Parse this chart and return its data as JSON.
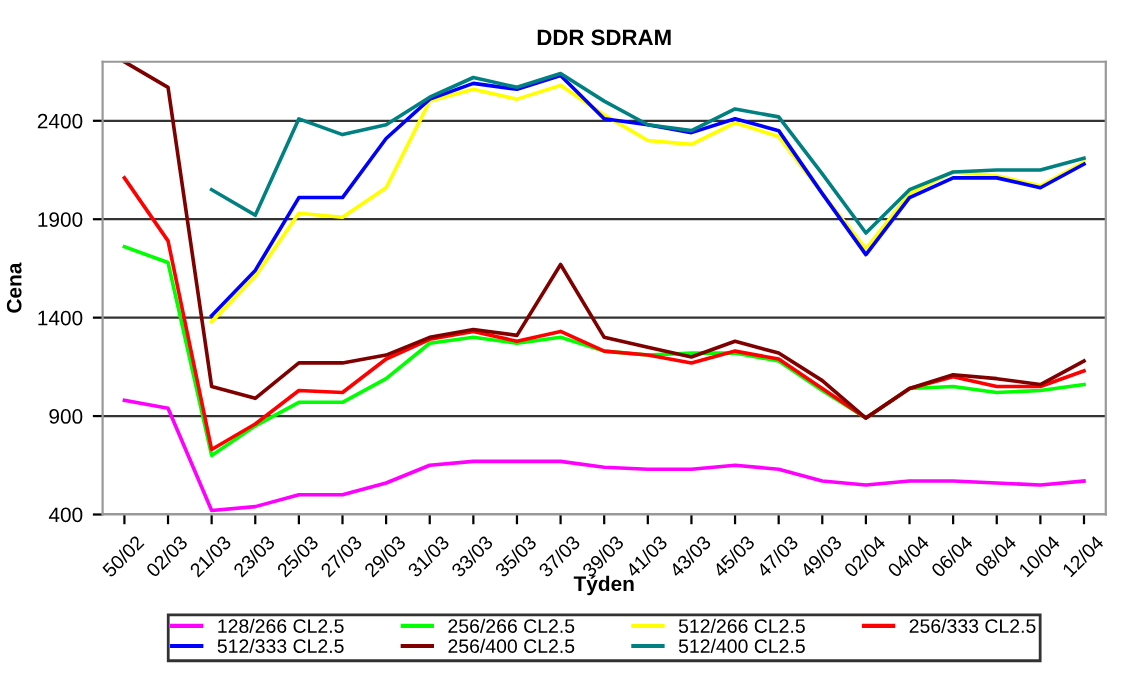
{
  "chart_data": {
    "type": "line",
    "title": "DDR SDRAM",
    "xlabel": "Týden",
    "ylabel": "Cena",
    "categories": [
      "50/02",
      "02/03",
      "21/03",
      "23/03",
      "25/03",
      "27/03",
      "29/03",
      "31/03",
      "33/03",
      "35/03",
      "37/03",
      "39/03",
      "41/03",
      "43/03",
      "45/03",
      "47/03",
      "49/03",
      "02/04",
      "04/04",
      "06/04",
      "08/04",
      "10/04",
      "12/04"
    ],
    "ylim": [
      400,
      2700
    ],
    "yticks": [
      400,
      900,
      1400,
      1900,
      2400
    ],
    "grid": "y",
    "legend": "bottom",
    "marker": "none",
    "line_style": "solid",
    "series": [
      {
        "name": "128/266 CL2.5",
        "color": "#ff00ff",
        "values": [
          980,
          940,
          420,
          440,
          500,
          500,
          560,
          650,
          670,
          670,
          670,
          640,
          630,
          630,
          650,
          630,
          570,
          550,
          570,
          570,
          560,
          550,
          570
        ]
      },
      {
        "name": "256/266 CL2.5",
        "color": "#00ff00",
        "values": [
          1760,
          1680,
          700,
          850,
          970,
          970,
          1090,
          1270,
          1300,
          1270,
          1300,
          1230,
          1210,
          1220,
          1220,
          1180,
          1030,
          890,
          1040,
          1050,
          1020,
          1030,
          1060
        ]
      },
      {
        "name": "512/266 CL2.5",
        "color": "#ffff00",
        "values": [
          null,
          null,
          1380,
          1610,
          1930,
          1910,
          2060,
          2500,
          2560,
          2510,
          2580,
          2430,
          2300,
          2280,
          2390,
          2320,
          2030,
          1750,
          2030,
          2140,
          2120,
          2070,
          2190
        ]
      },
      {
        "name": "256/333 CL2.5",
        "color": "#ff0000",
        "values": [
          2110,
          1790,
          730,
          860,
          1030,
          1020,
          1190,
          1290,
          1330,
          1280,
          1330,
          1230,
          1210,
          1170,
          1230,
          1190,
          1040,
          890,
          1040,
          1100,
          1050,
          1050,
          1130
        ]
      },
      {
        "name": "512/333 CL2.5",
        "color": "#0000ff",
        "values": [
          null,
          null,
          1410,
          1640,
          2010,
          2010,
          2310,
          2510,
          2590,
          2560,
          2630,
          2410,
          2380,
          2340,
          2410,
          2350,
          2030,
          1720,
          2010,
          2110,
          2110,
          2060,
          2180
        ]
      },
      {
        "name": "256/400 CL2.5",
        "color": "#800000",
        "values": [
          2700,
          2570,
          1050,
          990,
          1170,
          1170,
          1210,
          1300,
          1340,
          1310,
          1670,
          1300,
          1250,
          1200,
          1280,
          1220,
          1080,
          890,
          1040,
          1110,
          1090,
          1060,
          1180
        ]
      },
      {
        "name": "512/400 CL2.5",
        "color": "#008080",
        "values": [
          null,
          null,
          2050,
          1920,
          2410,
          2330,
          2380,
          2520,
          2620,
          2570,
          2640,
          2500,
          2380,
          2350,
          2460,
          2420,
          2130,
          1830,
          2050,
          2140,
          2150,
          2150,
          2210
        ]
      }
    ]
  }
}
